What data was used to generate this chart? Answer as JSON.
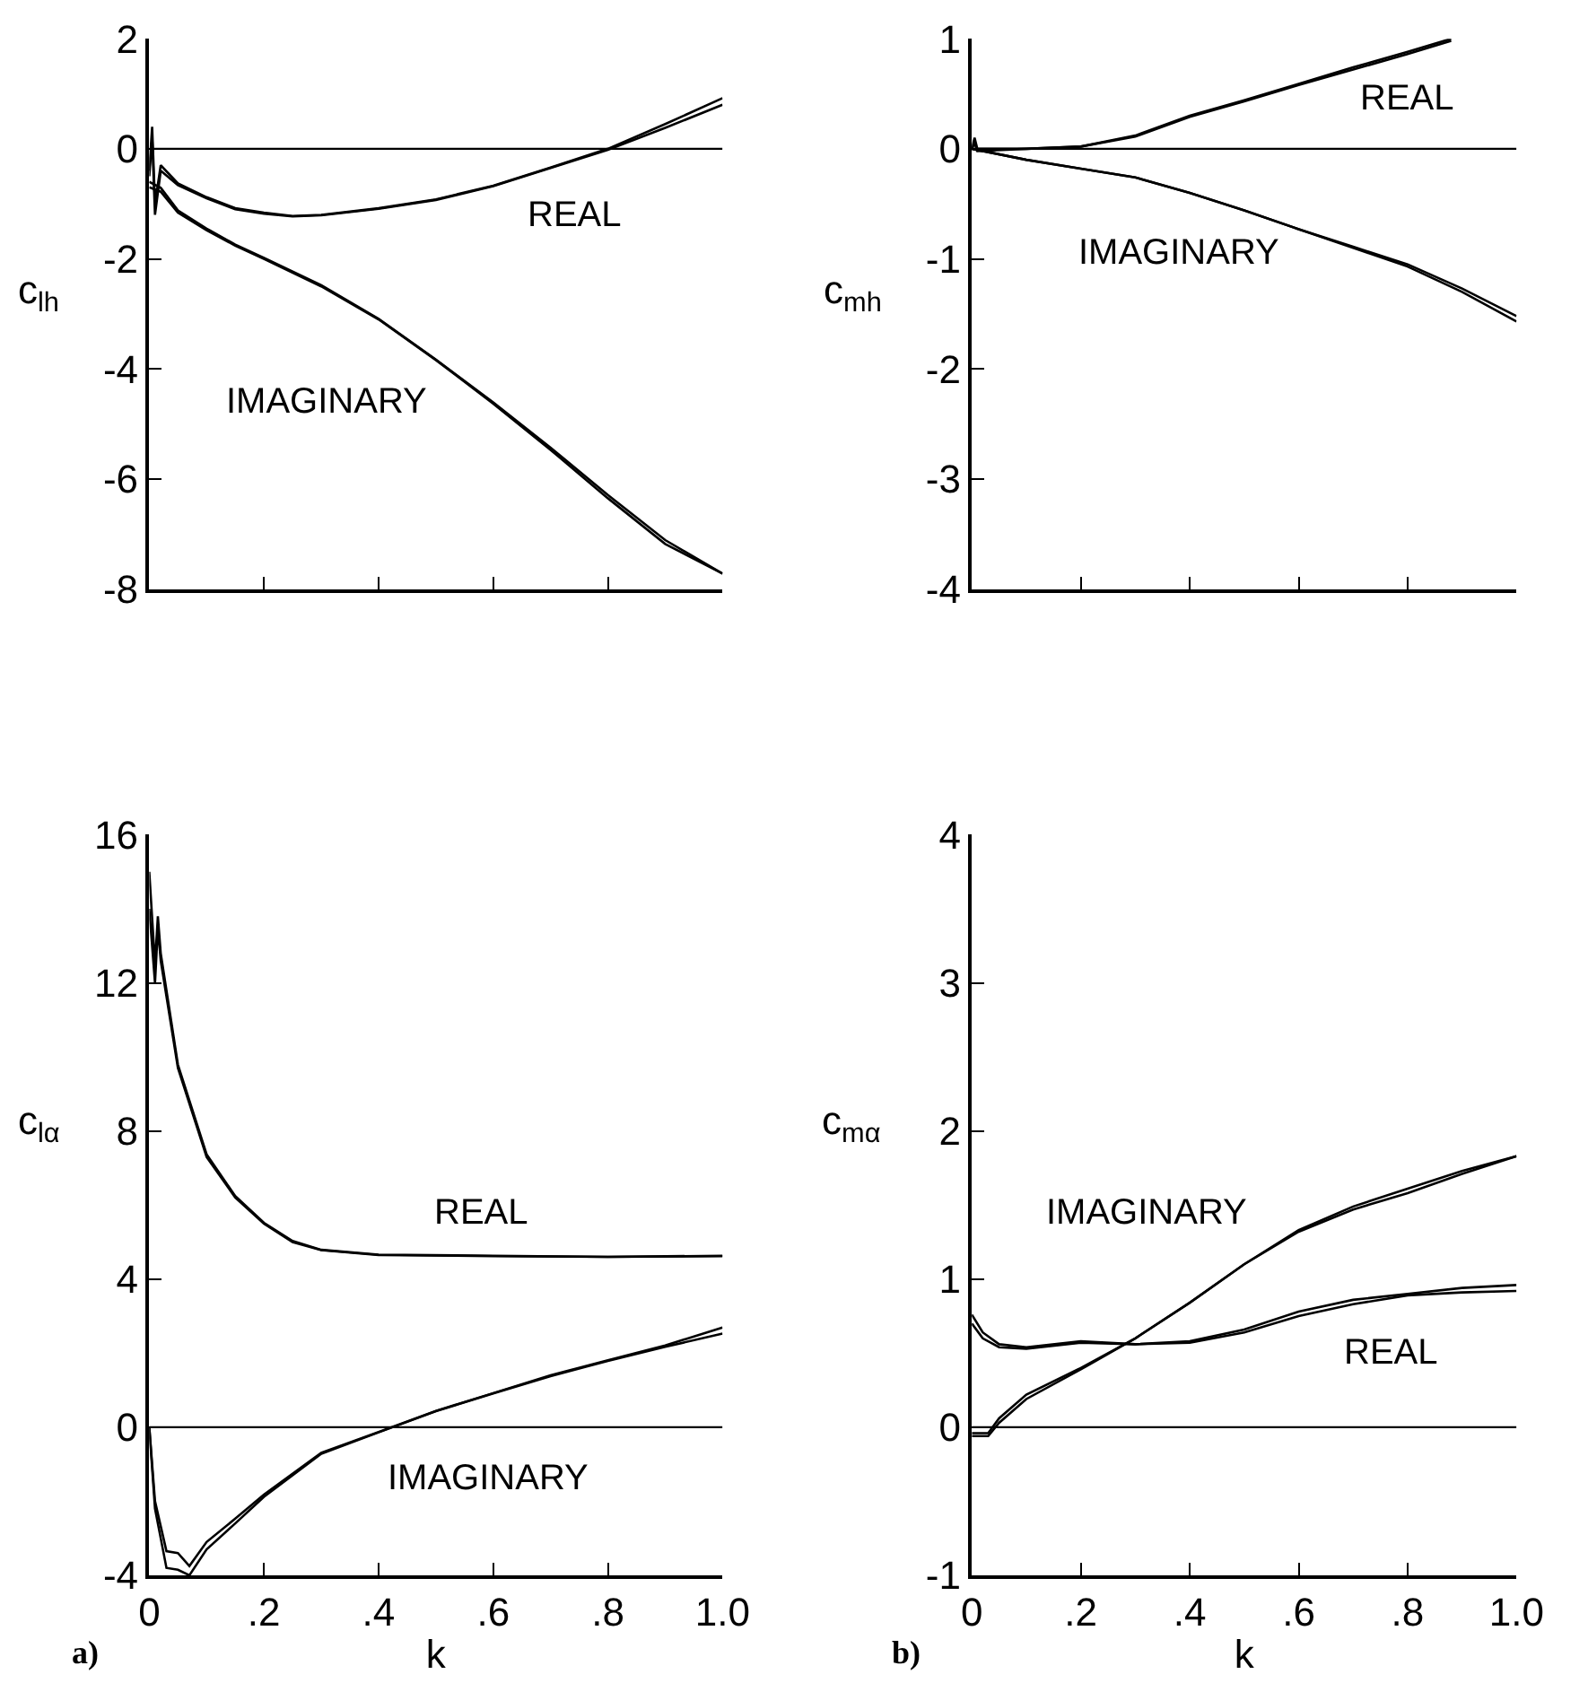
{
  "chart_data": [
    {
      "type": "line",
      "ylabel": "c$_{lh}$",
      "xlim": [
        0,
        1
      ],
      "ylim": [
        -8,
        2
      ],
      "yticks": [
        2,
        0,
        -2,
        -4,
        -6,
        -8
      ],
      "xticks": [
        {
          "value": 0,
          "label": null
        },
        {
          "value": 0.2,
          "label": null
        },
        {
          "value": 0.4,
          "label": null
        },
        {
          "value": 0.6,
          "label": null
        },
        {
          "value": 0.8,
          "label": null
        },
        {
          "value": 1,
          "label": null
        }
      ],
      "tick_labels": "y",
      "legend": false,
      "marker": "none",
      "line_style": "solid",
      "ref_lines": [
        {
          "axis": "y",
          "value": 0,
          "color": "#000000"
        }
      ],
      "series": [
        {
          "name": "REAL",
          "color": "#000000",
          "x": [
            0,
            0.005,
            0.01,
            0.02,
            0.05,
            0.1,
            0.15,
            0.2,
            0.25,
            0.3,
            0.4,
            0.5,
            0.6,
            0.7,
            0.8,
            0.9,
            1.0
          ],
          "values": [
            -0.4,
            0.4,
            -1.0,
            -0.3,
            -0.63,
            -0.88,
            -1.08,
            -1.16,
            -1.22,
            -1.2,
            -1.08,
            -0.92,
            -0.67,
            -0.34,
            0.0,
            0.45,
            0.92
          ]
        },
        {
          "color": "#000000",
          "x": [
            0,
            0.005,
            0.01,
            0.02,
            0.05,
            0.1,
            0.15,
            0.2,
            0.25,
            0.3,
            0.4,
            0.5,
            0.6,
            0.7,
            0.8,
            0.9,
            1.0
          ],
          "values": [
            -0.5,
            0.2,
            -1.2,
            -0.4,
            -0.66,
            -0.9,
            -1.1,
            -1.18,
            -1.23,
            -1.21,
            -1.09,
            -0.93,
            -0.68,
            -0.35,
            -0.02,
            0.38,
            0.8
          ]
        },
        {
          "name": "IMAGINARY",
          "color": "#000000",
          "x": [
            0,
            0.02,
            0.05,
            0.1,
            0.15,
            0.2,
            0.3,
            0.4,
            0.5,
            0.6,
            0.7,
            0.8,
            0.9,
            1.0
          ],
          "values": [
            -0.6,
            -0.71,
            -1.12,
            -1.45,
            -1.74,
            -1.98,
            -2.48,
            -3.09,
            -3.83,
            -4.61,
            -5.43,
            -6.29,
            -7.11,
            -7.72
          ]
        },
        {
          "color": "#000000",
          "x": [
            0,
            0.02,
            0.05,
            0.1,
            0.15,
            0.2,
            0.3,
            0.4,
            0.5,
            0.6,
            0.7,
            0.8,
            0.9,
            1.0
          ],
          "values": [
            -0.7,
            -0.78,
            -1.16,
            -1.48,
            -1.76,
            -2.0,
            -2.5,
            -3.1,
            -3.84,
            -4.63,
            -5.47,
            -6.35,
            -7.18,
            -7.72
          ]
        }
      ]
    },
    {
      "type": "line",
      "ylabel": "c$_{mh}$",
      "xlim": [
        0,
        1
      ],
      "ylim": [
        -4,
        1
      ],
      "yticks": [
        1,
        0,
        -1,
        -2,
        -3,
        -4
      ],
      "xticks": [
        {
          "value": 0,
          "label": null
        },
        {
          "value": 0.2,
          "label": null
        },
        {
          "value": 0.4,
          "label": null
        },
        {
          "value": 0.6,
          "label": null
        },
        {
          "value": 0.8,
          "label": null
        },
        {
          "value": 1,
          "label": null
        }
      ],
      "tick_labels": "y",
      "legend": false,
      "marker": "none",
      "line_style": "solid",
      "ref_lines": [
        {
          "axis": "y",
          "value": 0,
          "color": "#000000"
        }
      ],
      "series": [
        {
          "name": "REAL",
          "color": "#000000",
          "x": [
            0,
            0.005,
            0.01,
            0.1,
            0.2,
            0.3,
            0.4,
            0.5,
            0.6,
            0.7,
            0.8,
            0.88
          ],
          "values": [
            0.0,
            0.1,
            0.0,
            0.0,
            0.02,
            0.12,
            0.3,
            0.44,
            0.59,
            0.74,
            0.88,
            1.0
          ]
        },
        {
          "color": "#000000",
          "x": [
            0,
            0.005,
            0.01,
            0.1,
            0.2,
            0.3,
            0.4,
            0.5,
            0.6,
            0.7,
            0.8,
            0.88
          ],
          "values": [
            0.0,
            0.05,
            -0.02,
            0.0,
            0.02,
            0.11,
            0.29,
            0.43,
            0.58,
            0.72,
            0.86,
            0.98
          ]
        },
        {
          "name": "IMAGINARY",
          "color": "#000000",
          "x": [
            0,
            0.1,
            0.2,
            0.3,
            0.4,
            0.5,
            0.6,
            0.7,
            0.8,
            0.9,
            1.0
          ],
          "values": [
            0.0,
            -0.1,
            -0.18,
            -0.26,
            -0.4,
            -0.56,
            -0.73,
            -0.89,
            -1.05,
            -1.27,
            -1.52
          ]
        },
        {
          "color": "#000000",
          "x": [
            0,
            0.1,
            0.2,
            0.3,
            0.4,
            0.5,
            0.6,
            0.7,
            0.8,
            0.9,
            1.0
          ],
          "values": [
            0.0,
            -0.1,
            -0.18,
            -0.26,
            -0.4,
            -0.56,
            -0.73,
            -0.9,
            -1.07,
            -1.3,
            -1.57
          ]
        }
      ]
    },
    {
      "type": "line",
      "ylabel": "c$_{lα}$",
      "xlabel": "k",
      "xlim": [
        0,
        1
      ],
      "ylim": [
        -4,
        16
      ],
      "yticks": [
        16,
        12,
        8,
        4,
        0,
        -4
      ],
      "xticks": [
        0,
        {
          "value": 0.2,
          "label": ".2"
        },
        {
          "value": 0.4,
          "label": ".4"
        },
        {
          "value": 0.6,
          "label": ".6"
        },
        {
          "value": 0.8,
          "label": ".8"
        },
        {
          "value": 1,
          "label": "1.0"
        }
      ],
      "legend": false,
      "marker": "none",
      "line_style": "solid",
      "ref_lines": [
        {
          "axis": "y",
          "value": 0,
          "color": "#000000"
        }
      ],
      "annotations": [
        "a)"
      ],
      "series": [
        {
          "name": "REAL",
          "color": "#000000",
          "x": [
            0,
            0.01,
            0.015,
            0.02,
            0.05,
            0.1,
            0.15,
            0.2,
            0.25,
            0.3,
            0.4,
            0.6,
            0.8,
            1.0
          ],
          "values": [
            15,
            12.5,
            13.8,
            12.8,
            9.79,
            7.37,
            6.24,
            5.52,
            5.03,
            4.79,
            4.66,
            4.63,
            4.6,
            4.63
          ]
        },
        {
          "color": "#000000",
          "x": [
            0,
            0.01,
            0.015,
            0.02,
            0.05,
            0.1,
            0.15,
            0.2,
            0.25,
            0.3,
            0.4,
            0.6,
            0.8,
            1.0
          ],
          "values": [
            14,
            12.0,
            13.5,
            12.6,
            9.7,
            7.3,
            6.2,
            5.5,
            5.0,
            4.78,
            4.65,
            4.62,
            4.6,
            4.62
          ]
        },
        {
          "name": "IMAGINARY",
          "color": "#000000",
          "x": [
            0,
            0.01,
            0.03,
            0.05,
            0.07,
            0.1,
            0.15,
            0.2,
            0.3,
            0.4,
            0.5,
            0.6,
            0.7,
            0.8,
            0.9,
            1.0
          ],
          "values": [
            0,
            -2,
            -3.35,
            -3.4,
            -3.75,
            -3.1,
            -2.47,
            -1.82,
            -0.69,
            -0.13,
            0.44,
            0.92,
            1.4,
            1.81,
            2.21,
            2.69
          ]
        },
        {
          "color": "#000000",
          "x": [
            0,
            0.01,
            0.03,
            0.05,
            0.07,
            0.1,
            0.15,
            0.2,
            0.3,
            0.4,
            0.5,
            0.6,
            0.7,
            0.8,
            0.9,
            1.0
          ],
          "values": [
            0,
            -2.2,
            -3.8,
            -3.85,
            -4.0,
            -3.3,
            -2.6,
            -1.88,
            -0.72,
            -0.14,
            0.43,
            0.91,
            1.38,
            1.79,
            2.17,
            2.53
          ]
        }
      ]
    },
    {
      "type": "line",
      "ylabel": "c$_{mα}$",
      "xlabel": "k",
      "xlim": [
        0,
        1
      ],
      "ylim": [
        -1,
        4
      ],
      "yticks": [
        4,
        3,
        2,
        1,
        0,
        -1
      ],
      "xticks": [
        0,
        {
          "value": 0.2,
          "label": ".2"
        },
        {
          "value": 0.4,
          "label": ".4"
        },
        {
          "value": 0.6,
          "label": ".6"
        },
        {
          "value": 0.8,
          "label": ".8"
        },
        {
          "value": 1,
          "label": "1.0"
        }
      ],
      "legend": false,
      "marker": "none",
      "line_style": "solid",
      "ref_lines": [
        {
          "axis": "y",
          "value": 0,
          "color": "#000000"
        }
      ],
      "annotations": [
        "b)"
      ],
      "series": [
        {
          "name": "REAL",
          "color": "#000000",
          "x": [
            0,
            0.02,
            0.05,
            0.1,
            0.2,
            0.3,
            0.4,
            0.5,
            0.6,
            0.7,
            0.8,
            0.9,
            1.0
          ],
          "values": [
            0.76,
            0.64,
            0.56,
            0.54,
            0.58,
            0.56,
            0.58,
            0.66,
            0.78,
            0.86,
            0.9,
            0.94,
            0.96
          ]
        },
        {
          "color": "#000000",
          "x": [
            0,
            0.02,
            0.05,
            0.1,
            0.2,
            0.3,
            0.4,
            0.5,
            0.6,
            0.7,
            0.8,
            0.9,
            1.0
          ],
          "values": [
            0.7,
            0.6,
            0.54,
            0.53,
            0.57,
            0.56,
            0.57,
            0.64,
            0.75,
            0.83,
            0.89,
            0.91,
            0.92
          ]
        },
        {
          "name": "IMAGINARY",
          "color": "#000000",
          "x": [
            0,
            0.03,
            0.05,
            0.1,
            0.2,
            0.3,
            0.4,
            0.5,
            0.6,
            0.7,
            0.8,
            0.9,
            1.0
          ],
          "values": [
            -0.04,
            -0.04,
            0.06,
            0.22,
            0.4,
            0.6,
            0.84,
            1.1,
            1.33,
            1.49,
            1.61,
            1.73,
            1.83
          ]
        },
        {
          "color": "#000000",
          "x": [
            0,
            0.03,
            0.05,
            0.1,
            0.2,
            0.3,
            0.4,
            0.5,
            0.6,
            0.7,
            0.8,
            0.9,
            1.0
          ],
          "values": [
            -0.06,
            -0.06,
            0.03,
            0.19,
            0.39,
            0.6,
            0.84,
            1.1,
            1.32,
            1.47,
            1.58,
            1.71,
            1.83
          ]
        }
      ]
    }
  ]
}
